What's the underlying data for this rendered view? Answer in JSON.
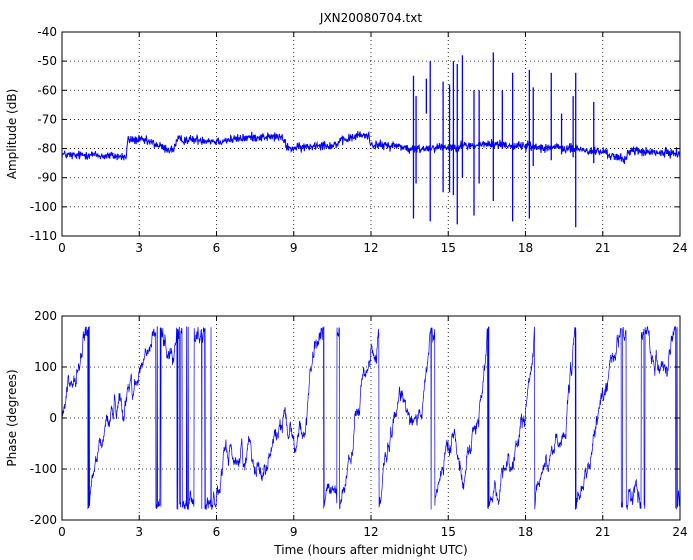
{
  "title": "JXN20080704.txt",
  "colors": {
    "series": "#0000ff",
    "axes": "#000000",
    "grid": "#000000",
    "background": "#ffffff"
  },
  "chart_data": [
    {
      "type": "line",
      "title": "JXN20080704.txt",
      "xlabel": "",
      "ylabel": "Amplitude (dB)",
      "xlim": [
        0,
        24
      ],
      "ylim": [
        -110,
        -40
      ],
      "xticks": [
        0,
        3,
        6,
        9,
        12,
        15,
        18,
        21,
        24
      ],
      "yticks": [
        -110,
        -100,
        -90,
        -80,
        -70,
        -60,
        -50,
        -40
      ],
      "grid": true,
      "baseline": [
        [
          0,
          -82
        ],
        [
          0.5,
          -82.5
        ],
        [
          1.0,
          -82
        ],
        [
          1.5,
          -82.5
        ],
        [
          2.0,
          -82.5
        ],
        [
          2.5,
          -83
        ],
        [
          2.55,
          -77
        ],
        [
          3.0,
          -77
        ],
        [
          3.5,
          -78
        ],
        [
          4.0,
          -80
        ],
        [
          4.3,
          -80.5
        ],
        [
          4.5,
          -77
        ],
        [
          5.0,
          -77
        ],
        [
          5.5,
          -77
        ],
        [
          6.0,
          -77.5
        ],
        [
          6.5,
          -77
        ],
        [
          7.0,
          -76.5
        ],
        [
          7.5,
          -76
        ],
        [
          8.0,
          -76
        ],
        [
          8.5,
          -76
        ],
        [
          8.8,
          -80
        ],
        [
          9.5,
          -79.5
        ],
        [
          10.0,
          -78.5
        ],
        [
          10.5,
          -79
        ],
        [
          11.0,
          -77
        ],
        [
          11.5,
          -75.5
        ],
        [
          11.9,
          -75.5
        ],
        [
          12.0,
          -78.5
        ],
        [
          12.5,
          -79
        ],
        [
          13.0,
          -79
        ],
        [
          13.3,
          -79.5
        ],
        [
          13.5,
          -80.5
        ],
        [
          14.0,
          -80
        ],
        [
          14.5,
          -79.5
        ],
        [
          15.0,
          -79.5
        ],
        [
          15.5,
          -79
        ],
        [
          16.0,
          -79
        ],
        [
          16.5,
          -78.5
        ],
        [
          17.0,
          -78.5
        ],
        [
          17.5,
          -79
        ],
        [
          18.0,
          -79
        ],
        [
          18.5,
          -79.5
        ],
        [
          19.0,
          -79.5
        ],
        [
          19.5,
          -80
        ],
        [
          20.0,
          -80
        ],
        [
          20.5,
          -81
        ],
        [
          21.0,
          -81
        ],
        [
          21.5,
          -83
        ],
        [
          21.9,
          -84
        ],
        [
          22.0,
          -80.5
        ],
        [
          22.5,
          -81
        ],
        [
          23.0,
          -81.5
        ],
        [
          23.5,
          -81.5
        ],
        [
          24.0,
          -81.5
        ]
      ],
      "spikes": [
        [
          13.65,
          -104,
          -55
        ],
        [
          13.75,
          -92,
          -62
        ],
        [
          14.15,
          -68,
          -56
        ],
        [
          14.3,
          -105,
          -50
        ],
        [
          14.8,
          -95,
          -57
        ],
        [
          15.05,
          -95,
          -58
        ],
        [
          15.2,
          -96,
          -50
        ],
        [
          15.35,
          -106,
          -51
        ],
        [
          15.55,
          -90,
          -48
        ],
        [
          16.0,
          -103,
          -60
        ],
        [
          16.2,
          -92,
          -60
        ],
        [
          16.75,
          -98,
          -47
        ],
        [
          17.1,
          -80,
          -60
        ],
        [
          17.5,
          -105,
          -54
        ],
        [
          18.15,
          -104,
          -53
        ],
        [
          18.3,
          -86,
          -59
        ],
        [
          19.0,
          -84,
          -54
        ],
        [
          19.4,
          -82,
          -68
        ],
        [
          19.85,
          -83,
          -62
        ],
        [
          19.95,
          -107,
          -54
        ],
        [
          20.65,
          -85,
          -64
        ]
      ]
    },
    {
      "type": "line",
      "title": "",
      "xlabel": "Time (hours after midnight UTC)",
      "ylabel": "Phase (degrees)",
      "xlim": [
        0,
        24
      ],
      "ylim": [
        -200,
        200
      ],
      "xticks": [
        0,
        3,
        6,
        9,
        12,
        15,
        18,
        21,
        24
      ],
      "yticks": [
        -200,
        -100,
        0,
        100,
        200
      ],
      "grid": true,
      "wrap_range": [
        -180,
        180
      ],
      "drift_segments": [
        [
          0,
          0.2,
          0.6
        ],
        [
          0.6,
          2.6,
          0.45
        ],
        [
          2.6,
          3.1,
          0.35
        ],
        [
          3.1,
          4.8,
          0.06
        ],
        [
          4.8,
          5.3,
          -0.08
        ],
        [
          5.3,
          5.6,
          0.25
        ],
        [
          5.6,
          6.0,
          0.5
        ],
        [
          6.0,
          6.4,
          0.2
        ],
        [
          6.4,
          7.2,
          0.1
        ],
        [
          7.2,
          7.7,
          0.3
        ],
        [
          7.7,
          8.4,
          0.5
        ],
        [
          8.4,
          9.0,
          0.2
        ],
        [
          9.0,
          10.0,
          0.4
        ],
        [
          10.0,
          11.0,
          0.2
        ],
        [
          11.0,
          12.5,
          0.55
        ],
        [
          12.5,
          13.5,
          0.18
        ],
        [
          13.5,
          14.5,
          0.5
        ],
        [
          14.5,
          15.5,
          0.25
        ],
        [
          15.5,
          17.5,
          0.6
        ],
        [
          17.5,
          19.5,
          0.45
        ],
        [
          19.5,
          20.5,
          0.7
        ],
        [
          20.5,
          21.8,
          0.4
        ],
        [
          21.8,
          23.0,
          0.2
        ],
        [
          23.0,
          24.0,
          0.35
        ]
      ]
    }
  ]
}
